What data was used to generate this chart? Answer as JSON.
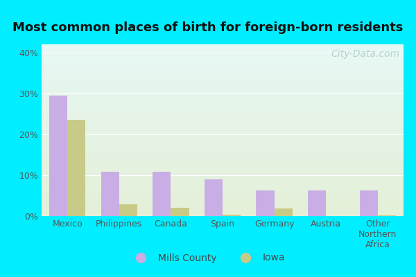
{
  "title": "Most common places of birth for foreign-born residents",
  "categories": [
    "Mexico",
    "Philippines",
    "Canada",
    "Spain",
    "Germany",
    "Austria",
    "Other\nNorthern\nAfrica"
  ],
  "mills_county": [
    29.5,
    10.8,
    10.8,
    9.0,
    6.2,
    6.2,
    6.2
  ],
  "iowa": [
    23.5,
    2.8,
    2.0,
    0.3,
    1.8,
    0.0,
    0.2
  ],
  "mills_color": "#c9aee5",
  "iowa_color": "#c8ca88",
  "outer_bg": "#00eeff",
  "plot_bg_top": "#e8f8f4",
  "plot_bg_bottom": "#e4f0d8",
  "ylim": [
    0,
    42
  ],
  "yticks": [
    0,
    10,
    20,
    30,
    40
  ],
  "ytick_labels": [
    "0%",
    "10%",
    "20%",
    "30%",
    "40%"
  ],
  "legend_labels": [
    "Mills County",
    "Iowa"
  ],
  "bar_width": 0.35,
  "title_fontsize": 13,
  "tick_fontsize": 9,
  "legend_fontsize": 10,
  "watermark": "City-Data.com",
  "watermark_fontsize": 10
}
